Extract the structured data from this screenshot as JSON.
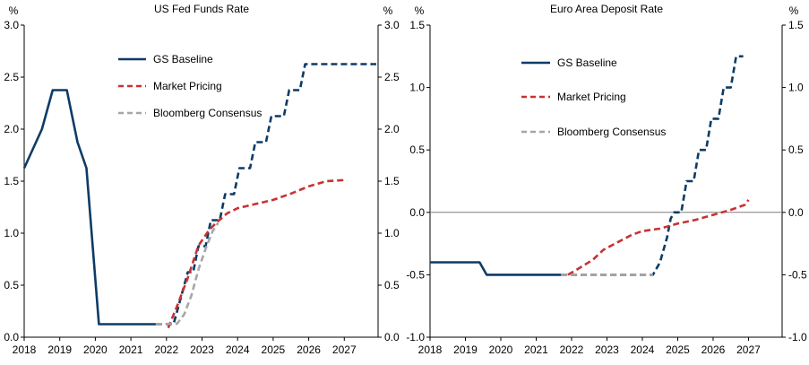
{
  "chart_data": [
    {
      "type": "line",
      "title": "US Fed Funds Rate",
      "unit_left": "%",
      "unit_right": "%",
      "xlabel": "",
      "ylabel": "%",
      "x_tick_labels": [
        "2018",
        "2019",
        "2020",
        "2021",
        "2022",
        "2023",
        "2024",
        "2025",
        "2026",
        "2027"
      ],
      "xlim": [
        2018.0,
        2027.95
      ],
      "ylim": [
        0.0,
        3.0
      ],
      "y_ticks": [
        0.0,
        0.5,
        1.0,
        1.5,
        2.0,
        2.5,
        3.0
      ],
      "y_tick_labels": [
        "0.0",
        "0.5",
        "1.0",
        "1.5",
        "2.0",
        "2.5",
        "3.0"
      ],
      "legend": {
        "position": "upper-center",
        "entries": [
          "GS Baseline",
          "Market Pricing",
          "Bloomberg Consensus"
        ]
      },
      "series": [
        {
          "name": "GS Baseline",
          "style": "solid",
          "color": "#0d3b66",
          "points": [
            [
              2018.0,
              1.625
            ],
            [
              2018.5,
              2.0
            ],
            [
              2018.8,
              2.375
            ],
            [
              2019.2,
              2.375
            ],
            [
              2019.5,
              1.875
            ],
            [
              2019.75,
              1.625
            ],
            [
              2020.1,
              0.125
            ],
            [
              2021.7,
              0.125
            ]
          ]
        },
        {
          "name": "GS Baseline (forecast)",
          "style": "dashed",
          "color": "#0d3b66",
          "points": [
            [
              2021.7,
              0.125
            ],
            [
              2022.2,
              0.125
            ],
            [
              2022.4,
              0.375
            ],
            [
              2022.6,
              0.625
            ],
            [
              2022.75,
              0.625
            ],
            [
              2022.9,
              0.875
            ],
            [
              2023.1,
              0.875
            ],
            [
              2023.25,
              1.125
            ],
            [
              2023.5,
              1.125
            ],
            [
              2023.65,
              1.375
            ],
            [
              2023.9,
              1.375
            ],
            [
              2024.05,
              1.625
            ],
            [
              2024.35,
              1.625
            ],
            [
              2024.5,
              1.875
            ],
            [
              2024.8,
              1.875
            ],
            [
              2024.95,
              2.125
            ],
            [
              2025.3,
              2.125
            ],
            [
              2025.45,
              2.375
            ],
            [
              2025.75,
              2.375
            ],
            [
              2025.9,
              2.625
            ],
            [
              2027.9,
              2.625
            ]
          ]
        },
        {
          "name": "Market Pricing",
          "style": "dashed",
          "color": "#c83232",
          "points": [
            [
              2022.05,
              0.09
            ],
            [
              2022.3,
              0.3
            ],
            [
              2022.6,
              0.57
            ],
            [
              2022.9,
              0.88
            ],
            [
              2023.2,
              1.03
            ],
            [
              2023.4,
              1.1
            ],
            [
              2023.7,
              1.19
            ],
            [
              2024.0,
              1.24
            ],
            [
              2024.5,
              1.28
            ],
            [
              2025.0,
              1.32
            ],
            [
              2025.5,
              1.38
            ],
            [
              2026.0,
              1.45
            ],
            [
              2026.5,
              1.5
            ],
            [
              2027.0,
              1.51
            ]
          ]
        },
        {
          "name": "Bloomberg Consensus",
          "style": "dashed",
          "color": "#a6a6a6",
          "points": [
            [
              2021.7,
              0.125
            ],
            [
              2022.3,
              0.13
            ],
            [
              2022.5,
              0.22
            ],
            [
              2022.7,
              0.4
            ],
            [
              2022.9,
              0.65
            ],
            [
              2023.1,
              0.85
            ],
            [
              2023.3,
              1.02
            ],
            [
              2023.45,
              1.1
            ]
          ]
        }
      ]
    },
    {
      "type": "line",
      "title": "Euro Area Deposit Rate",
      "unit_left": "%",
      "unit_right": "%",
      "xlabel": "",
      "ylabel": "%",
      "x_tick_labels": [
        "2018",
        "2019",
        "2020",
        "2021",
        "2022",
        "2023",
        "2024",
        "2025",
        "2026",
        "2027"
      ],
      "xlim": [
        2018.0,
        2027.95
      ],
      "ylim": [
        -1.0,
        1.5
      ],
      "y_ticks": [
        -1.0,
        -0.5,
        0.0,
        0.5,
        1.0,
        1.5
      ],
      "y_tick_labels": [
        "-1.0",
        "-0.5",
        "0.0",
        "0.5",
        "1.0",
        "1.5"
      ],
      "zero_line": true,
      "legend": {
        "position": "upper-center",
        "entries": [
          "GS Baseline",
          "Market Pricing",
          "Bloomberg Consensus"
        ]
      },
      "series": [
        {
          "name": "GS Baseline",
          "style": "solid",
          "color": "#0d3b66",
          "points": [
            [
              2018.0,
              -0.4
            ],
            [
              2019.4,
              -0.4
            ],
            [
              2019.6,
              -0.5
            ],
            [
              2021.7,
              -0.5
            ]
          ]
        },
        {
          "name": "GS Baseline (forecast)",
          "style": "dashed",
          "color": "#0d3b66",
          "points": [
            [
              2021.7,
              -0.5
            ],
            [
              2024.3,
              -0.5
            ],
            [
              2024.5,
              -0.4
            ],
            [
              2024.7,
              -0.2
            ],
            [
              2024.8,
              -0.05
            ],
            [
              2024.9,
              0.0
            ],
            [
              2025.1,
              0.0
            ],
            [
              2025.25,
              0.25
            ],
            [
              2025.45,
              0.25
            ],
            [
              2025.6,
              0.5
            ],
            [
              2025.8,
              0.5
            ],
            [
              2025.95,
              0.75
            ],
            [
              2026.15,
              0.75
            ],
            [
              2026.3,
              1.0
            ],
            [
              2026.5,
              1.0
            ],
            [
              2026.65,
              1.25
            ],
            [
              2026.85,
              1.25
            ]
          ]
        },
        {
          "name": "Market Pricing",
          "style": "dashed",
          "color": "#c83232",
          "points": [
            [
              2021.9,
              -0.5
            ],
            [
              2022.2,
              -0.45
            ],
            [
              2022.6,
              -0.38
            ],
            [
              2022.9,
              -0.3
            ],
            [
              2023.3,
              -0.24
            ],
            [
              2023.7,
              -0.18
            ],
            [
              2024.0,
              -0.15
            ],
            [
              2024.5,
              -0.13
            ],
            [
              2025.0,
              -0.09
            ],
            [
              2025.5,
              -0.06
            ],
            [
              2026.0,
              -0.02
            ],
            [
              2026.5,
              0.02
            ],
            [
              2026.9,
              0.06
            ],
            [
              2027.0,
              0.1
            ]
          ]
        },
        {
          "name": "Bloomberg Consensus",
          "style": "dashed",
          "color": "#a6a6a6",
          "points": [
            [
              2021.7,
              -0.5
            ],
            [
              2024.3,
              -0.5
            ]
          ]
        }
      ]
    }
  ]
}
